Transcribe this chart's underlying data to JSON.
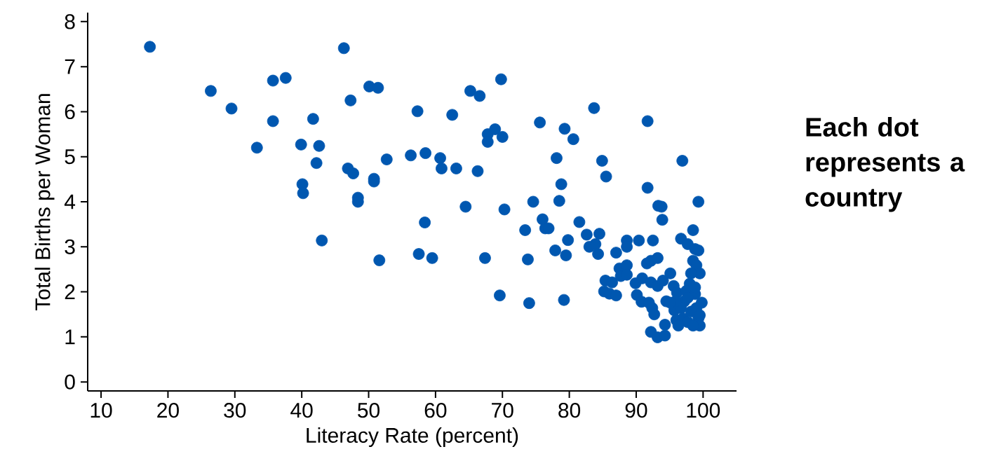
{
  "chart_data": {
    "type": "scatter",
    "xlabel": "Literacy Rate (percent)",
    "ylabel": "Total Births per Woman",
    "color": "#0057b0",
    "xlim": [
      8,
      105
    ],
    "ylim": [
      -0.2,
      8.2
    ],
    "xticks": [
      10,
      20,
      30,
      40,
      50,
      60,
      70,
      80,
      90,
      100
    ],
    "yticks": [
      0,
      1,
      2,
      3,
      4,
      5,
      6,
      7,
      8
    ],
    "annotations": [
      "Each dot represents a country"
    ],
    "x": [
      17.3,
      26.4,
      29.5,
      33.3,
      35.7,
      37.6,
      35.7,
      39.9,
      41.7,
      40.1,
      40.2,
      42.2,
      42.6,
      43.0,
      46.3,
      47.3,
      46.9,
      47.7,
      48.4,
      48.4,
      50.1,
      51.4,
      50.8,
      50.8,
      52.7,
      51.6,
      57.3,
      56.3,
      58.5,
      58.4,
      57.5,
      59.5,
      60.7,
      60.9,
      62.5,
      63.1,
      64.5,
      65.2,
      66.6,
      66.3,
      67.4,
      69.8,
      67.8,
      68.9,
      67.8,
      70.0,
      70.3,
      69.6,
      74.0,
      75.6,
      74.6,
      73.4,
      73.8,
      76.0,
      76.4,
      76.9,
      78.1,
      77.9,
      78.8,
      78.5,
      79.3,
      80.6,
      79.8,
      79.5,
      79.2,
      81.5,
      83.7,
      82.6,
      83.0,
      83.9,
      84.5,
      84.3,
      84.9,
      85.5,
      85.4,
      85.2,
      86.0,
      87.0,
      86.4,
      87.0,
      87.5,
      87.7,
      88.6,
      88.6,
      88.6,
      88.6,
      90.4,
      91.7,
      91.7,
      92.5,
      89.9,
      90.1,
      90.9,
      91.6,
      92.2,
      92.2,
      93.2,
      90.8,
      91.9,
      92.4,
      92.7,
      92.2,
      93.2,
      94.3,
      94.3,
      93.3,
      93.8,
      93.9,
      93.2,
      94.0,
      94.5,
      95.1,
      95.6,
      96.1,
      95.7,
      96.0,
      96.9,
      96.7,
      97.7,
      98.8,
      99.3,
      98.5,
      99.3,
      98.5,
      99.0,
      99.5,
      98.2,
      98.0,
      97.5,
      97.2,
      96.7,
      97.0,
      97.7,
      98.2,
      98.8,
      99.0,
      99.3,
      99.5,
      99.8,
      99.5,
      98.5,
      96.3,
      97.7,
      95.9,
      95.1,
      98.8
    ],
    "values": [
      7.44,
      6.46,
      6.07,
      5.2,
      6.69,
      6.75,
      5.79,
      5.27,
      5.84,
      4.39,
      4.19,
      4.86,
      5.24,
      3.14,
      7.41,
      6.25,
      4.74,
      4.63,
      4.09,
      4.0,
      6.56,
      6.53,
      4.51,
      4.45,
      4.94,
      2.7,
      6.01,
      5.03,
      5.08,
      3.54,
      2.84,
      2.75,
      4.97,
      4.74,
      5.93,
      4.74,
      3.89,
      6.46,
      6.35,
      4.68,
      2.75,
      6.72,
      5.5,
      5.61,
      5.33,
      5.44,
      3.83,
      1.92,
      1.75,
      5.76,
      4.0,
      3.37,
      2.72,
      3.61,
      3.41,
      3.41,
      4.97,
      2.92,
      4.39,
      4.02,
      5.62,
      5.39,
      3.15,
      2.81,
      1.82,
      3.55,
      6.08,
      3.27,
      3.0,
      3.06,
      3.29,
      2.84,
      4.91,
      4.56,
      2.25,
      2.01,
      1.96,
      1.92,
      2.21,
      2.87,
      2.52,
      2.35,
      3.14,
      3.0,
      2.59,
      2.38,
      3.14,
      5.79,
      4.31,
      3.14,
      2.19,
      1.93,
      2.3,
      2.63,
      2.69,
      2.21,
      2.75,
      1.78,
      1.76,
      1.64,
      1.5,
      1.11,
      0.99,
      1.03,
      1.27,
      3.91,
      3.89,
      3.6,
      2.13,
      2.25,
      1.79,
      2.41,
      2.13,
      1.98,
      1.59,
      1.37,
      4.91,
      3.18,
      3.06,
      2.95,
      2.92,
      3.37,
      4.0,
      2.69,
      2.59,
      2.41,
      2.41,
      2.18,
      2.02,
      1.79,
      1.64,
      1.41,
      1.33,
      1.56,
      1.95,
      1.64,
      1.41,
      1.25,
      1.76,
      1.48,
      1.25,
      1.25,
      1.87,
      1.79,
      1.76,
      2.1
    ]
  }
}
